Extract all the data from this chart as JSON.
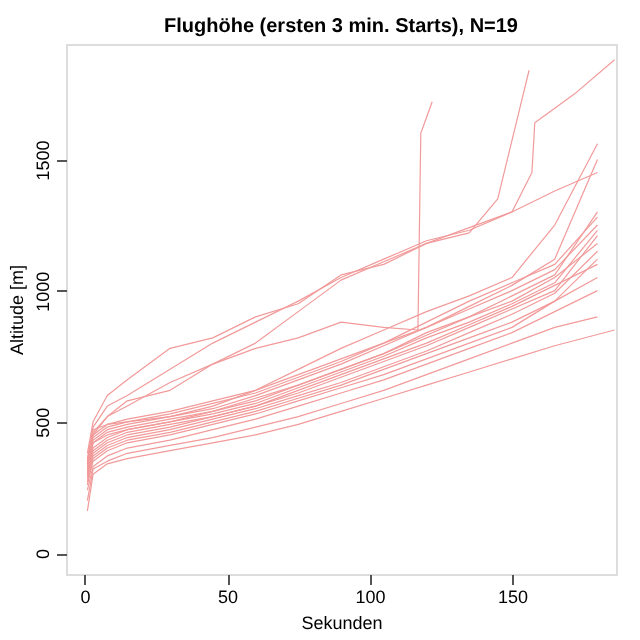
{
  "chart_data": {
    "type": "line",
    "title": "Flughöhe (ersten 3 min. Starts), N=19",
    "xlabel": "Sekunden",
    "ylabel": "Altitude [m]",
    "xlim": [
      -6.5,
      186.5
    ],
    "ylim": [
      -80,
      1940
    ],
    "xticks": [
      0,
      50,
      100,
      150
    ],
    "yticks": [
      0,
      500,
      1000,
      1500
    ],
    "grid": false,
    "legend": false,
    "line_style": "solid",
    "marker": "none",
    "series": [
      {
        "color": "#f29a9a",
        "x": [
          1,
          3,
          8,
          15,
          30,
          45,
          60,
          75,
          90,
          105,
          120,
          135,
          150,
          157,
          158,
          172,
          186
        ],
        "values": [
          350,
          480,
          560,
          600,
          700,
          800,
          880,
          960,
          1050,
          1120,
          1190,
          1230,
          1300,
          1450,
          1640,
          1750,
          1880
        ]
      },
      {
        "color": "#f29a9a",
        "x": [
          1,
          3,
          8,
          15,
          30,
          45,
          60,
          75,
          90,
          105,
          120,
          135,
          145,
          156
        ],
        "values": [
          380,
          500,
          600,
          660,
          780,
          820,
          900,
          950,
          1060,
          1100,
          1180,
          1220,
          1350,
          1840
        ]
      },
      {
        "color": "#f29a9a",
        "x": [
          1,
          3,
          8,
          15,
          30,
          45,
          60,
          75,
          90,
          105,
          117,
          118,
          122
        ],
        "values": [
          330,
          450,
          520,
          560,
          650,
          720,
          780,
          820,
          880,
          860,
          850,
          1600,
          1720
        ]
      },
      {
        "color": "#f29a9a",
        "x": [
          1,
          3,
          8,
          15,
          30,
          45,
          60,
          75,
          90,
          105,
          120,
          135,
          150,
          165,
          180
        ],
        "values": [
          340,
          460,
          520,
          580,
          620,
          720,
          800,
          920,
          1040,
          1110,
          1180,
          1240,
          1300,
          1380,
          1450
        ]
      },
      {
        "color": "#f29a9a",
        "x": [
          1,
          3,
          8,
          15,
          30,
          45,
          60,
          75,
          90,
          105,
          120,
          135,
          150,
          165,
          180
        ],
        "values": [
          360,
          470,
          490,
          500,
          520,
          560,
          620,
          700,
          780,
          850,
          920,
          980,
          1050,
          1250,
          1560
        ]
      },
      {
        "color": "#f29a9a",
        "x": [
          1,
          3,
          8,
          15,
          30,
          45,
          60,
          75,
          90,
          105,
          120,
          135,
          150,
          165,
          180
        ],
        "values": [
          320,
          430,
          470,
          490,
          520,
          550,
          600,
          660,
          720,
          790,
          860,
          940,
          1020,
          1120,
          1500
        ]
      },
      {
        "color": "#f29a9a",
        "x": [
          1,
          3,
          8,
          15,
          30,
          45,
          60,
          75,
          90,
          105,
          120,
          135,
          150,
          165,
          180
        ],
        "values": [
          300,
          420,
          460,
          480,
          510,
          540,
          590,
          640,
          700,
          760,
          830,
          900,
          980,
          1060,
          1300
        ]
      },
      {
        "color": "#f29a9a",
        "x": [
          1,
          3,
          8,
          15,
          30,
          45,
          60,
          75,
          90,
          105,
          120,
          135,
          150,
          165,
          180
        ],
        "values": [
          340,
          440,
          480,
          500,
          530,
          570,
          610,
          670,
          730,
          800,
          880,
          960,
          1030,
          1100,
          1280
        ]
      },
      {
        "color": "#f29a9a",
        "x": [
          1,
          3,
          8,
          15,
          30,
          45,
          60,
          75,
          90,
          105,
          120,
          135,
          150,
          165,
          180
        ],
        "values": [
          350,
          450,
          490,
          510,
          540,
          580,
          620,
          680,
          740,
          800,
          860,
          930,
          1000,
          1080,
          1250
        ]
      },
      {
        "color": "#f29a9a",
        "x": [
          1,
          3,
          8,
          15,
          30,
          45,
          60,
          75,
          90,
          105,
          120,
          135,
          150,
          165,
          180
        ],
        "values": [
          310,
          400,
          440,
          470,
          500,
          530,
          570,
          630,
          690,
          750,
          820,
          880,
          950,
          1030,
          1230
        ]
      },
      {
        "color": "#f29a9a",
        "x": [
          1,
          3,
          8,
          15,
          30,
          45,
          60,
          75,
          90,
          105,
          120,
          135,
          150,
          165,
          180
        ],
        "values": [
          290,
          380,
          420,
          450,
          480,
          520,
          560,
          610,
          670,
          730,
          790,
          860,
          930,
          1000,
          1210
        ]
      },
      {
        "color": "#f29a9a",
        "x": [
          1,
          3,
          8,
          15,
          30,
          45,
          60,
          75,
          90,
          105,
          120,
          135,
          150,
          165,
          180
        ],
        "values": [
          330,
          420,
          450,
          470,
          500,
          540,
          580,
          640,
          700,
          760,
          840,
          900,
          960,
          1050,
          1180
        ]
      },
      {
        "color": "#f29a9a",
        "x": [
          1,
          3,
          8,
          15,
          30,
          45,
          60,
          75,
          90,
          105,
          120,
          135,
          150,
          165,
          180
        ],
        "values": [
          280,
          370,
          410,
          440,
          470,
          510,
          550,
          600,
          650,
          710,
          770,
          840,
          910,
          990,
          1150
        ]
      },
      {
        "color": "#f29a9a",
        "x": [
          1,
          3,
          8,
          15,
          30,
          45,
          60,
          75,
          90,
          105,
          120,
          135,
          150,
          165,
          180
        ],
        "values": [
          260,
          360,
          400,
          430,
          460,
          500,
          540,
          590,
          640,
          700,
          760,
          820,
          880,
          960,
          1120
        ]
      },
      {
        "color": "#f29a9a",
        "x": [
          1,
          3,
          8,
          15,
          30,
          45,
          60,
          75,
          90,
          105,
          120,
          135,
          150,
          165,
          180
        ],
        "values": [
          300,
          390,
          430,
          460,
          490,
          520,
          560,
          620,
          680,
          740,
          800,
          870,
          940,
          1020,
          1100
        ]
      },
      {
        "color": "#f29a9a",
        "x": [
          1,
          3,
          8,
          15,
          30,
          45,
          60,
          75,
          90,
          105,
          120,
          135,
          150,
          165,
          180
        ],
        "values": [
          270,
          350,
          390,
          420,
          450,
          490,
          530,
          580,
          630,
          680,
          740,
          800,
          860,
          960,
          1050
        ]
      },
      {
        "color": "#f29a9a",
        "x": [
          1,
          3,
          8,
          15,
          30,
          45,
          60,
          75,
          90,
          105,
          120,
          135,
          150,
          165,
          180
        ],
        "values": [
          240,
          330,
          370,
          400,
          430,
          470,
          510,
          560,
          610,
          660,
          720,
          780,
          840,
          920,
          1000
        ]
      },
      {
        "color": "#f29a9a",
        "x": [
          1,
          3,
          8,
          15,
          30,
          45,
          60,
          75,
          90,
          105,
          120,
          135,
          150,
          165,
          180
        ],
        "values": [
          200,
          320,
          350,
          380,
          410,
          440,
          480,
          520,
          570,
          620,
          680,
          740,
          800,
          860,
          900
        ]
      },
      {
        "color": "#f29a9a",
        "x": [
          1,
          3,
          8,
          15,
          30,
          45,
          60,
          75,
          90,
          105,
          120,
          135,
          150,
          165,
          186
        ],
        "values": [
          160,
          300,
          340,
          360,
          390,
          420,
          450,
          490,
          540,
          590,
          640,
          690,
          740,
          790,
          850
        ]
      }
    ]
  }
}
